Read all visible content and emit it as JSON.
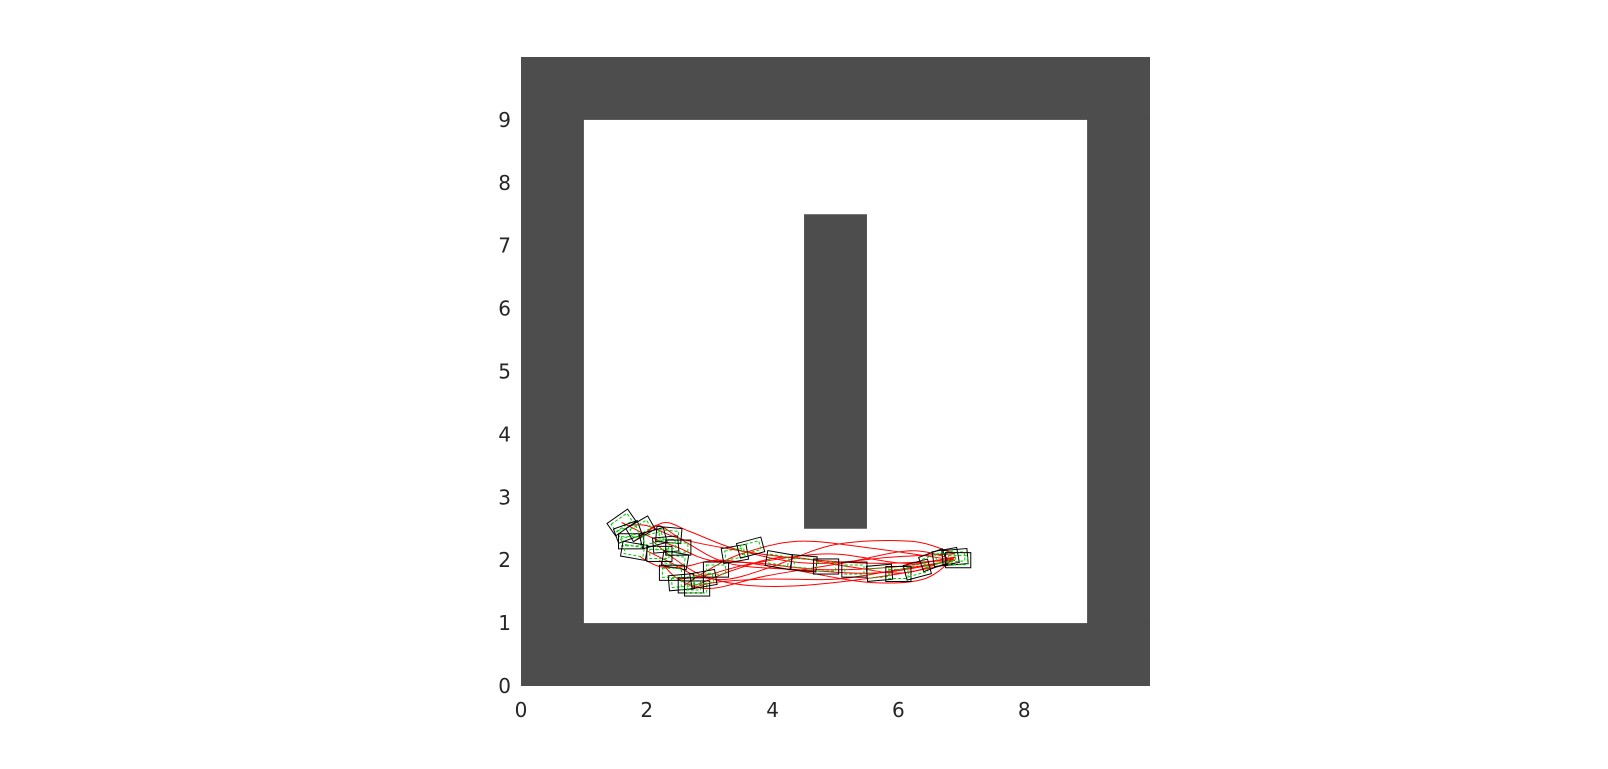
{
  "chart_data": {
    "type": "scatter",
    "title": "",
    "xlabel": "",
    "ylabel": "",
    "xlim": [
      0,
      10
    ],
    "ylim": [
      0,
      10
    ],
    "x_ticks": [
      0,
      2,
      4,
      6,
      8
    ],
    "y_ticks": [
      0,
      1,
      2,
      3,
      4,
      5,
      6,
      7,
      8,
      9
    ],
    "x_tick_labels": [
      "0",
      "2",
      "4",
      "6",
      "8"
    ],
    "y_tick_labels": [
      "0",
      "1",
      "2",
      "3",
      "4",
      "5",
      "6",
      "7",
      "8",
      "9"
    ],
    "grid": false,
    "legend": "none",
    "colors": {
      "obstacle": "#4d4d4d",
      "free_space": "#ffffff",
      "trajectory": "#ff0000",
      "vehicle_box": "#000000",
      "vehicle_inner": "#00cc00"
    },
    "obstacles": [
      {
        "name": "outer-wall-left",
        "x_range": [
          0,
          1
        ],
        "y_range": [
          0,
          10
        ]
      },
      {
        "name": "outer-wall-right",
        "x_range": [
          9,
          10
        ],
        "y_range": [
          0,
          10
        ]
      },
      {
        "name": "outer-wall-bottom",
        "x_range": [
          0,
          10
        ],
        "y_range": [
          0,
          1
        ]
      },
      {
        "name": "outer-wall-top",
        "x_range": [
          0,
          10
        ],
        "y_range": [
          9,
          10
        ]
      },
      {
        "name": "center-pillar",
        "x_range": [
          4.5,
          5.5
        ],
        "y_range": [
          2.5,
          7.5
        ]
      }
    ],
    "vehicle_size": {
      "length": 0.4,
      "width": 0.24
    },
    "series": [
      {
        "x": [
          6.9,
          6.0,
          4.8,
          3.8,
          3.0,
          2.5,
          2.1,
          1.8,
          1.6
        ],
        "y": [
          2.05,
          1.9,
          1.85,
          1.95,
          2.0,
          2.2,
          2.35,
          2.5,
          2.6
        ]
      },
      {
        "x": [
          6.9,
          5.6,
          4.2,
          3.2,
          2.5,
          2.0,
          1.7
        ],
        "y": [
          2.0,
          1.95,
          2.05,
          2.2,
          2.35,
          2.55,
          2.55
        ]
      },
      {
        "x": [
          6.9,
          6.2,
          5.0,
          4.0,
          3.3,
          2.8,
          2.4,
          2.0
        ],
        "y": [
          2.1,
          2.3,
          2.25,
          1.9,
          1.7,
          1.75,
          1.95,
          2.15
        ]
      },
      {
        "x": [
          6.9,
          5.8,
          4.5,
          3.6,
          2.9,
          2.4,
          2.1
        ],
        "y": [
          1.95,
          1.75,
          1.6,
          1.6,
          1.75,
          2.05,
          2.3
        ]
      },
      {
        "x": [
          6.9,
          6.1,
          5.2,
          4.2,
          3.4,
          2.9,
          2.7
        ],
        "y": [
          2.05,
          1.8,
          1.9,
          2.05,
          1.85,
          1.65,
          1.58
        ]
      },
      {
        "x": [
          6.9,
          5.5,
          4.4,
          3.5,
          2.9,
          2.6
        ],
        "y": [
          2.0,
          2.2,
          2.3,
          2.1,
          1.8,
          1.6
        ]
      },
      {
        "x": [
          6.9,
          6.0,
          5.0,
          3.9,
          3.1,
          2.7
        ],
        "y": [
          2.0,
          1.85,
          1.7,
          1.7,
          1.65,
          1.55
        ]
      },
      {
        "x": [
          6.9,
          6.4,
          5.5,
          4.3,
          3.2,
          2.6,
          2.2,
          1.9
        ],
        "y": [
          2.05,
          1.7,
          1.65,
          1.85,
          2.0,
          1.9,
          1.9,
          2.05
        ]
      },
      {
        "x": [
          6.9,
          5.9,
          4.6,
          3.5,
          2.7,
          2.3,
          2.0
        ],
        "y": [
          2.1,
          2.05,
          1.95,
          2.15,
          2.45,
          2.6,
          2.45
        ]
      },
      {
        "x": [
          6.9,
          6.2,
          5.1,
          3.9,
          3.0,
          2.5,
          2.2
        ],
        "y": [
          2.0,
          2.15,
          1.95,
          1.75,
          1.55,
          1.7,
          2.0
        ]
      },
      {
        "x": [
          6.9,
          5.7,
          4.4,
          3.3,
          2.6,
          2.2,
          2.0,
          1.8
        ],
        "y": [
          2.0,
          1.8,
          1.85,
          1.95,
          2.3,
          2.55,
          2.45,
          2.3
        ]
      },
      {
        "x": [
          6.9,
          6.1,
          4.9,
          3.7,
          2.9,
          2.5
        ],
        "y": [
          2.05,
          1.95,
          2.1,
          1.95,
          1.75,
          1.7
        ]
      }
    ],
    "vehicles": [
      {
        "x": 1.6,
        "y": 2.6,
        "heading": 35
      },
      {
        "x": 1.7,
        "y": 2.45,
        "heading": 20
      },
      {
        "x": 1.75,
        "y": 2.3,
        "heading": 0
      },
      {
        "x": 1.8,
        "y": 2.15,
        "heading": -10
      },
      {
        "x": 1.9,
        "y": 2.5,
        "heading": 30
      },
      {
        "x": 2.1,
        "y": 2.35,
        "heading": 15
      },
      {
        "x": 2.2,
        "y": 2.1,
        "heading": 0
      },
      {
        "x": 2.3,
        "y": 2.25,
        "heading": 5
      },
      {
        "x": 2.35,
        "y": 2.4,
        "heading": -5
      },
      {
        "x": 2.45,
        "y": 2.0,
        "heading": -10
      },
      {
        "x": 2.5,
        "y": 2.2,
        "heading": 0
      },
      {
        "x": 2.4,
        "y": 1.8,
        "heading": 0
      },
      {
        "x": 2.55,
        "y": 1.65,
        "heading": 5
      },
      {
        "x": 2.7,
        "y": 1.6,
        "heading": 0
      },
      {
        "x": 2.8,
        "y": 1.55,
        "heading": 0
      },
      {
        "x": 2.9,
        "y": 1.7,
        "heading": 10
      },
      {
        "x": 3.1,
        "y": 1.85,
        "heading": 0
      },
      {
        "x": 3.4,
        "y": 2.1,
        "heading": 10
      },
      {
        "x": 3.65,
        "y": 2.2,
        "heading": 15
      },
      {
        "x": 4.1,
        "y": 2.0,
        "heading": -10
      },
      {
        "x": 4.5,
        "y": 1.95,
        "heading": -5
      },
      {
        "x": 4.85,
        "y": 1.9,
        "heading": 0
      },
      {
        "x": 5.3,
        "y": 1.85,
        "heading": 0
      },
      {
        "x": 5.7,
        "y": 1.8,
        "heading": 5
      },
      {
        "x": 6.0,
        "y": 1.78,
        "heading": 0
      },
      {
        "x": 6.3,
        "y": 1.85,
        "heading": 15
      },
      {
        "x": 6.55,
        "y": 2.0,
        "heading": 20
      },
      {
        "x": 6.75,
        "y": 2.05,
        "heading": 10
      },
      {
        "x": 6.9,
        "y": 2.05,
        "heading": 5
      },
      {
        "x": 6.95,
        "y": 2.0,
        "heading": 0
      }
    ]
  }
}
